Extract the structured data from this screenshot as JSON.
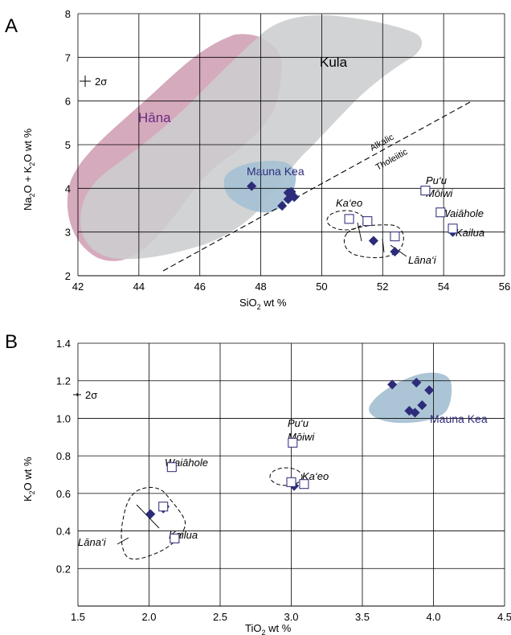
{
  "colors": {
    "hana_field": "#cf9bb1",
    "kula_field": "#d3d4d4",
    "mauna_kea_field": "#a8c2d4",
    "diamond": "#2d2c7a",
    "square_stroke": "#3a3982",
    "hana_text": "#6a2a80",
    "mauna_kea_text": "#2d2c7a"
  },
  "panel_a": {
    "label": "A",
    "xlabel_main": "SiO",
    "xlabel_sub": "2",
    "xlabel_tail": " wt %",
    "ylabel_parts": [
      "Na",
      "2",
      "O + K",
      "2",
      "O wt %"
    ],
    "xticks": [
      42,
      44,
      46,
      48,
      50,
      52,
      54,
      56
    ],
    "yticks": [
      2,
      3,
      4,
      5,
      6,
      7,
      8
    ],
    "error_label": "2σ",
    "fields": {
      "hana": "Hāna",
      "kula": "Kula",
      "mauna_kea": "Mauna Kea"
    },
    "divider": {
      "upper": "Alkalic",
      "lower": "Tholeiitic"
    },
    "annotations": {
      "puu": "Pu‘u",
      "moiwi": "Mōiwi",
      "waiahole": "Waiāhole",
      "kailua": "Kailua",
      "kaeo": "Ka‘eo",
      "lanai": "Lāna‘i"
    }
  },
  "panel_b": {
    "label": "B",
    "xlabel_main": "TiO",
    "xlabel_sub": "2",
    "xlabel_tail": " wt %",
    "ylabel_parts": [
      "K",
      "2",
      "O wt %"
    ],
    "xticks": [
      "1.5",
      "2.0",
      "2.5",
      "3.0",
      "3.5",
      "4.0",
      "4.5"
    ],
    "yticks": [
      "0.2",
      "0.4",
      "0.6",
      "0.8",
      "1.0",
      "1.2",
      "1.4"
    ],
    "error_label": "2σ",
    "fields": {
      "mauna_kea": "Mauna Kea"
    },
    "annotations": {
      "puu": "Pu‘u",
      "moiwi": "Mōiwi",
      "waiahole": "Waiāhole",
      "kailua": "Kailua",
      "kaeo": "Ka‘eo",
      "lanai": "Lāna‘i"
    }
  },
  "chart_data": [
    {
      "type": "scatter",
      "panel": "A",
      "xlim": [
        42,
        56
      ],
      "ylim": [
        2,
        8
      ],
      "grid": true,
      "series": [
        {
          "name": "Mauna Kea",
          "marker": "diamond",
          "x": [
            47.7,
            48.9,
            48.9,
            49.0,
            49.0,
            49.1,
            48.7,
            51.7,
            52.4,
            54.3
          ],
          "y": [
            4.05,
            3.9,
            3.75,
            3.85,
            3.92,
            3.8,
            3.6,
            2.8,
            2.55,
            3.0
          ]
        },
        {
          "name": "Pu‘u Mōiwi",
          "marker": "square",
          "x": [
            53.4
          ],
          "y": [
            3.95
          ]
        },
        {
          "name": "Waiāhole",
          "marker": "square",
          "x": [
            53.9
          ],
          "y": [
            3.45
          ]
        },
        {
          "name": "Ka‘eo",
          "marker": "square",
          "x": [
            50.9,
            51.5
          ],
          "y": [
            3.3,
            3.25
          ]
        },
        {
          "name": "Lāna‘i / Kailua",
          "marker": "square",
          "x": [
            52.4,
            54.3
          ],
          "y": [
            2.9,
            3.08
          ]
        }
      ]
    },
    {
      "type": "scatter",
      "panel": "B",
      "xlim": [
        1.5,
        4.5
      ],
      "ylim": [
        0,
        1.4
      ],
      "grid": true,
      "series": [
        {
          "name": "Mauna Kea",
          "marker": "diamond",
          "x": [
            3.71,
            3.88,
            3.97,
            3.83,
            3.92,
            3.87,
            3.02,
            2.01,
            2.11,
            2.1
          ],
          "y": [
            1.18,
            1.19,
            1.15,
            1.04,
            1.07,
            1.03,
            0.64,
            0.49,
            0.53,
            0.52
          ]
        },
        {
          "name": "Pu‘u Mōiwi",
          "marker": "square",
          "x": [
            3.01
          ],
          "y": [
            0.87
          ]
        },
        {
          "name": "Waiāhole",
          "marker": "square",
          "x": [
            2.16
          ],
          "y": [
            0.74
          ]
        },
        {
          "name": "Kailua",
          "marker": "square",
          "x": [
            2.18
          ],
          "y": [
            0.36
          ]
        },
        {
          "name": "Ka‘eo",
          "marker": "square",
          "x": [
            3.0,
            3.09
          ],
          "y": [
            0.66,
            0.65
          ]
        },
        {
          "name": "Lāna‘i",
          "marker": "square",
          "x": [
            2.1
          ],
          "y": [
            0.53
          ]
        }
      ]
    }
  ]
}
